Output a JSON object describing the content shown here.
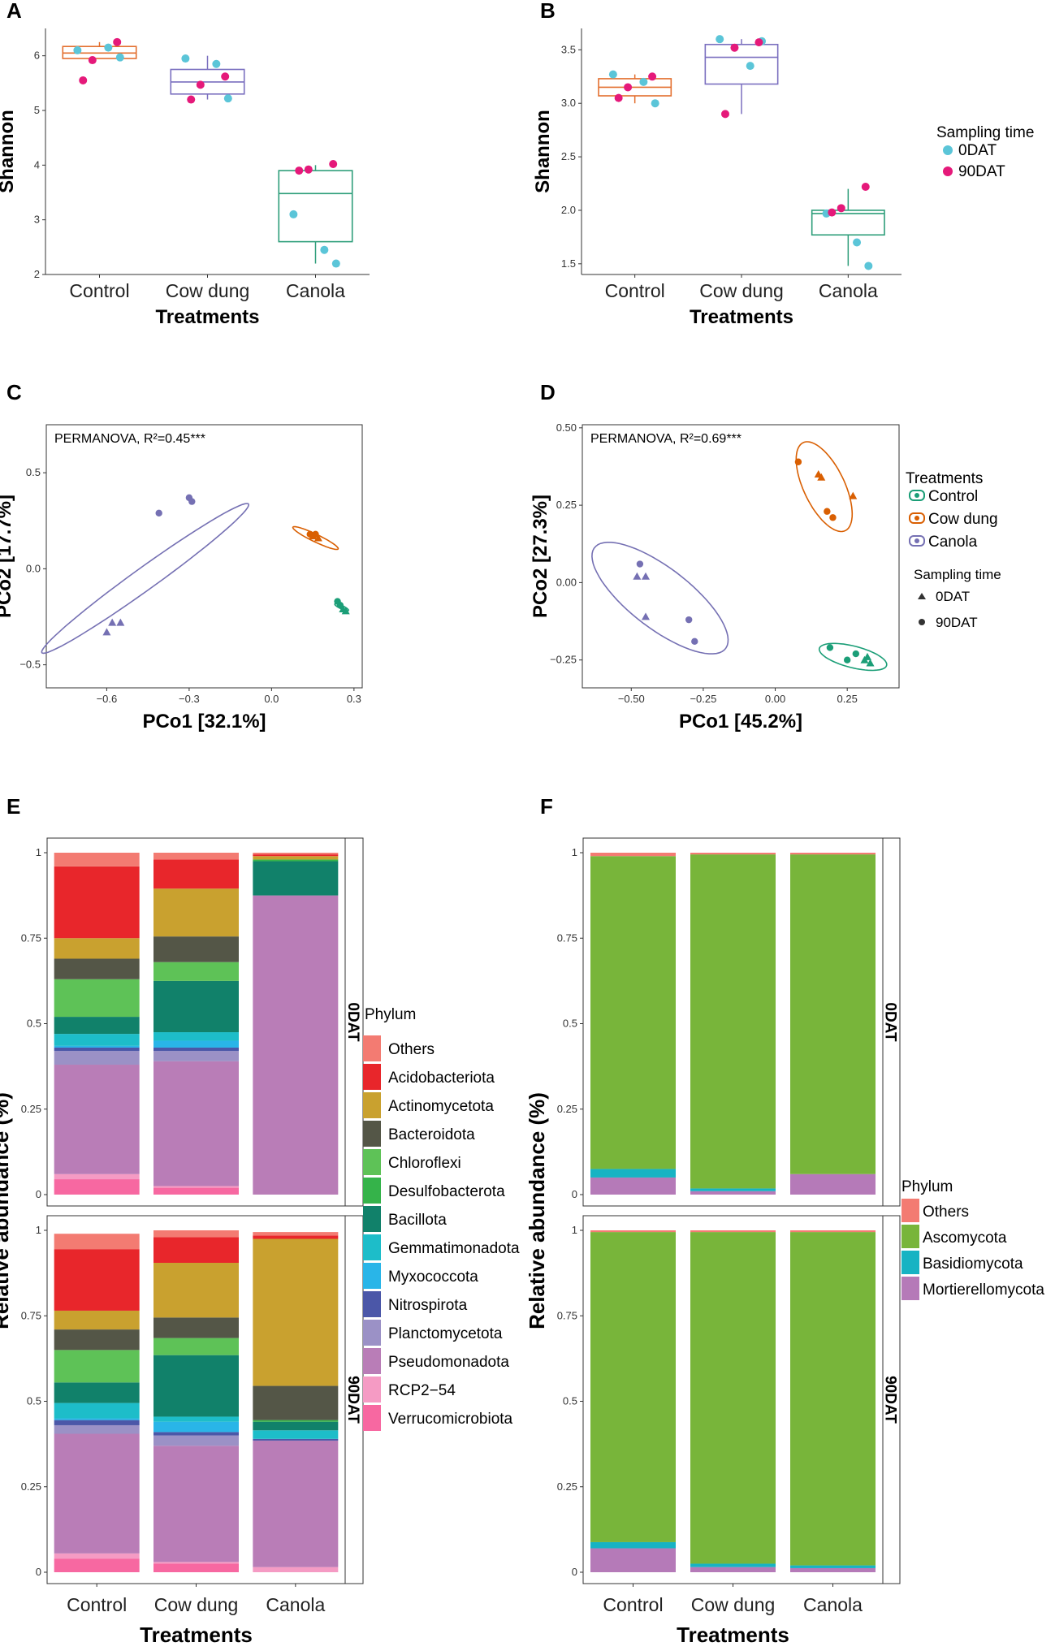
{
  "figure": {
    "panel_letters": [
      "A",
      "B",
      "C",
      "D",
      "E",
      "F"
    ]
  },
  "colors": {
    "Control": "#e36f2f",
    "Cow dung": "#7a6fbf",
    "Canola": "#2e9e7a",
    "pcoa_control": "#1b9e77",
    "pcoa_cowdung": "#d95f02",
    "pcoa_canola": "#7570b3",
    "0DAT": "#5bc5d8",
    "90DAT": "#e5197a"
  },
  "chart_data": [
    {
      "panel": "A",
      "type": "box",
      "title": "",
      "xlabel": "Treatments",
      "ylabel": "Shannon",
      "ylim": [
        2,
        6.5
      ],
      "yticks": [
        "2",
        "3",
        "4",
        "5",
        "6"
      ],
      "categories": [
        "Control",
        "Cow dung",
        "Canola"
      ],
      "boxes": [
        {
          "category": "Control",
          "min": 5.95,
          "q1": 5.95,
          "median": 6.05,
          "q3": 6.17,
          "max": 6.25
        },
        {
          "category": "Cow dung",
          "min": 5.2,
          "q1": 5.3,
          "median": 5.52,
          "q3": 5.75,
          "max": 6.0
        },
        {
          "category": "Canola",
          "min": 2.2,
          "q1": 2.6,
          "median": 3.48,
          "q3": 3.9,
          "max": 4.0
        }
      ],
      "points": [
        {
          "category": "Control",
          "time": "0DAT",
          "values": [
            6.1,
            6.15,
            5.97
          ]
        },
        {
          "category": "Control",
          "time": "90DAT",
          "values": [
            6.25,
            5.92,
            5.55
          ]
        },
        {
          "category": "Cow dung",
          "time": "0DAT",
          "values": [
            5.95,
            5.85,
            5.22
          ]
        },
        {
          "category": "Cow dung",
          "time": "90DAT",
          "values": [
            5.62,
            5.47,
            5.2
          ]
        },
        {
          "category": "Canola",
          "time": "0DAT",
          "values": [
            3.1,
            2.45,
            2.2
          ]
        },
        {
          "category": "Canola",
          "time": "90DAT",
          "values": [
            4.02,
            3.92,
            3.9
          ]
        }
      ]
    },
    {
      "panel": "B",
      "type": "box",
      "title": "",
      "xlabel": "Treatments",
      "ylabel": "Shannon",
      "ylim": [
        1.4,
        3.7
      ],
      "yticks": [
        "1.5",
        "2.0",
        "2.5",
        "3.0",
        "3.5"
      ],
      "categories": [
        "Control",
        "Cow dung",
        "Canola"
      ],
      "boxes": [
        {
          "category": "Control",
          "min": 3.0,
          "q1": 3.07,
          "median": 3.15,
          "q3": 3.23,
          "max": 3.27
        },
        {
          "category": "Cow dung",
          "min": 2.9,
          "q1": 3.18,
          "median": 3.43,
          "q3": 3.55,
          "max": 3.6
        },
        {
          "category": "Canola",
          "min": 1.48,
          "q1": 1.77,
          "median": 1.97,
          "q3": 2.0,
          "max": 2.2
        }
      ],
      "points": [
        {
          "category": "Control",
          "time": "0DAT",
          "values": [
            3.27,
            3.2,
            3.0
          ]
        },
        {
          "category": "Control",
          "time": "90DAT",
          "values": [
            3.25,
            3.15,
            3.05
          ]
        },
        {
          "category": "Cow dung",
          "time": "0DAT",
          "values": [
            3.6,
            3.35,
            3.58
          ]
        },
        {
          "category": "Cow dung",
          "time": "90DAT",
          "values": [
            3.57,
            3.52,
            2.9
          ]
        },
        {
          "category": "Canola",
          "time": "0DAT",
          "values": [
            1.97,
            1.7,
            1.48
          ]
        },
        {
          "category": "Canola",
          "time": "90DAT",
          "values": [
            2.22,
            2.02,
            1.98
          ]
        }
      ],
      "legend": {
        "title": "Sampling time",
        "items": [
          "0DAT",
          "90DAT"
        ]
      }
    },
    {
      "panel": "C",
      "type": "scatter",
      "title": "",
      "annotation": "PERMANOVA, R²=0.45***",
      "xlabel": "PCo1 [32.1%]",
      "ylabel": "PCo2 [17.7%]",
      "xlim": [
        -0.82,
        0.33
      ],
      "ylim": [
        -0.62,
        0.75
      ],
      "xticks": [
        -0.6,
        -0.3,
        0.0,
        0.3
      ],
      "xtick_labels": [
        "−0.6",
        "−0.3",
        "0.0",
        "0.3"
      ],
      "yticks": [
        -0.5,
        0.0,
        0.5
      ],
      "ytick_labels": [
        "−0.5",
        "0.0",
        "0.5"
      ],
      "series": [
        {
          "name": "Canola",
          "color_key": "pcoa_canola",
          "points": [
            {
              "time": "90DAT",
              "x": -0.41,
              "y": 0.29
            },
            {
              "time": "90DAT",
              "x": -0.3,
              "y": 0.37
            },
            {
              "time": "90DAT",
              "x": -0.29,
              "y": 0.35
            },
            {
              "time": "0DAT",
              "x": -0.6,
              "y": -0.33
            },
            {
              "time": "0DAT",
              "x": -0.58,
              "y": -0.28
            },
            {
              "time": "0DAT",
              "x": -0.55,
              "y": -0.28
            }
          ],
          "ellipse": {
            "cx": -0.46,
            "cy": -0.05,
            "rx": 0.54,
            "ry": 0.05,
            "angle_deg": 46
          }
        },
        {
          "name": "Cow dung",
          "color_key": "pcoa_cowdung",
          "points": [
            {
              "time": "90DAT",
              "x": 0.14,
              "y": 0.18
            },
            {
              "time": "90DAT",
              "x": 0.16,
              "y": 0.18
            },
            {
              "time": "0DAT",
              "x": 0.17,
              "y": 0.16
            },
            {
              "time": "0DAT",
              "x": 0.15,
              "y": 0.17
            }
          ],
          "ellipse": {
            "cx": 0.16,
            "cy": 0.16,
            "rx": 0.1,
            "ry": 0.018,
            "angle_deg": -35
          }
        },
        {
          "name": "Control",
          "color_key": "pcoa_control",
          "points": [
            {
              "time": "90DAT",
              "x": 0.24,
              "y": -0.17
            },
            {
              "time": "90DAT",
              "x": 0.25,
              "y": -0.19
            },
            {
              "time": "0DAT",
              "x": 0.26,
              "y": -0.21
            },
            {
              "time": "0DAT",
              "x": 0.27,
              "y": -0.22
            }
          ],
          "ellipse": {
            "cx": 0.255,
            "cy": -0.2,
            "rx": 0.03,
            "ry": 0.008,
            "angle_deg": -35
          }
        }
      ]
    },
    {
      "panel": "D",
      "type": "scatter",
      "title": "",
      "annotation": "PERMANOVA, R²=0.69***",
      "xlabel": "PCo1 [45.2%]",
      "ylabel": "PCo2 [27.3%]",
      "xlim": [
        -0.67,
        0.43
      ],
      "ylim": [
        -0.34,
        0.51
      ],
      "xticks": [
        -0.5,
        -0.25,
        0.0,
        0.25
      ],
      "xtick_labels": [
        "−0.50",
        "−0.25",
        "0.00",
        "0.25"
      ],
      "yticks": [
        -0.25,
        0.0,
        0.25,
        0.5
      ],
      "ytick_labels": [
        "−0.25",
        "0.00",
        "0.25",
        "0.50"
      ],
      "series": [
        {
          "name": "Cow dung",
          "color_key": "pcoa_cowdung",
          "points": [
            {
              "time": "90DAT",
              "x": 0.08,
              "y": 0.39
            },
            {
              "time": "0DAT",
              "x": 0.15,
              "y": 0.35
            },
            {
              "time": "0DAT",
              "x": 0.16,
              "y": 0.34
            },
            {
              "time": "0DAT",
              "x": 0.27,
              "y": 0.28
            },
            {
              "time": "90DAT",
              "x": 0.18,
              "y": 0.23
            },
            {
              "time": "90DAT",
              "x": 0.2,
              "y": 0.21
            }
          ],
          "ellipse": {
            "cx": 0.17,
            "cy": 0.31,
            "rx": 0.16,
            "ry": 0.07,
            "angle_deg": -62
          }
        },
        {
          "name": "Canola",
          "color_key": "pcoa_canola",
          "points": [
            {
              "time": "90DAT",
              "x": -0.47,
              "y": 0.06
            },
            {
              "time": "0DAT",
              "x": -0.48,
              "y": 0.02
            },
            {
              "time": "0DAT",
              "x": -0.45,
              "y": 0.02
            },
            {
              "time": "0DAT",
              "x": -0.45,
              "y": -0.11
            },
            {
              "time": "90DAT",
              "x": -0.3,
              "y": -0.12
            },
            {
              "time": "90DAT",
              "x": -0.28,
              "y": -0.19
            }
          ],
          "ellipse": {
            "cx": -0.4,
            "cy": -0.05,
            "rx": 0.28,
            "ry": 0.1,
            "angle_deg": -35
          }
        },
        {
          "name": "Control",
          "color_key": "pcoa_control",
          "points": [
            {
              "time": "90DAT",
              "x": 0.19,
              "y": -0.21
            },
            {
              "time": "90DAT",
              "x": 0.25,
              "y": -0.25
            },
            {
              "time": "90DAT",
              "x": 0.28,
              "y": -0.23
            },
            {
              "time": "0DAT",
              "x": 0.31,
              "y": -0.25
            },
            {
              "time": "0DAT",
              "x": 0.33,
              "y": -0.26
            },
            {
              "time": "0DAT",
              "x": 0.32,
              "y": -0.24
            }
          ],
          "ellipse": {
            "cx": 0.27,
            "cy": -0.24,
            "rx": 0.12,
            "ry": 0.035,
            "angle_deg": -13
          }
        }
      ],
      "legend": {
        "title": "Treatments",
        "items": [
          "Control",
          "Cow dung",
          "Canola"
        ],
        "shape_title": "Sampling time",
        "shape_items": [
          "0DAT",
          "90DAT"
        ]
      }
    },
    {
      "panel": "E",
      "type": "bar",
      "stacked": true,
      "title": "",
      "xlabel": "Treatments",
      "ylabel": "Relative abundance (%)",
      "ylim": [
        0,
        1
      ],
      "yticks": [
        "0",
        "0.25",
        "0.5",
        "0.75",
        "1"
      ],
      "categories": [
        "Control",
        "Cow dung",
        "Canola"
      ],
      "facets": [
        "0DAT",
        "90DAT"
      ],
      "legend": {
        "title": "Phylum"
      },
      "phyla": [
        {
          "name": "Verrucomicrobiota",
          "color": "#f768a1"
        },
        {
          "name": "RCP2−54",
          "color": "#f59bc4"
        },
        {
          "name": "Pseudomonadota",
          "color": "#b97db7"
        },
        {
          "name": "Planctomycetota",
          "color": "#9b91c6"
        },
        {
          "name": "Nitrospirota",
          "color": "#4b57a8"
        },
        {
          "name": "Myxococcota",
          "color": "#29b5e8"
        },
        {
          "name": "Gemmatimonadota",
          "color": "#1dbdc9"
        },
        {
          "name": "Bacillota",
          "color": "#11816a"
        },
        {
          "name": "Desulfobacterota",
          "color": "#35b34a"
        },
        {
          "name": "Chloroflexi",
          "color": "#5ec257"
        },
        {
          "name": "Bacteroidota",
          "color": "#545647"
        },
        {
          "name": "Actinomycetota",
          "color": "#c9a12f"
        },
        {
          "name": "Acidobacteriota",
          "color": "#e8262b"
        },
        {
          "name": "Others",
          "color": "#f37b72"
        }
      ],
      "legend_order": [
        "Others",
        "Acidobacteriota",
        "Actinomycetota",
        "Bacteroidota",
        "Chloroflexi",
        "Desulfobacterota",
        "Bacillota",
        "Gemmatimonadota",
        "Myxococcota",
        "Nitrospirota",
        "Planctomycetota",
        "Pseudomonadota",
        "RCP2−54",
        "Verrucomicrobiota"
      ],
      "values": {
        "0DAT": {
          "Control": [
            0.045,
            0.015,
            0.32,
            0.04,
            0.01,
            0.005,
            0.035,
            0.05,
            0.0,
            0.11,
            0.06,
            0.06,
            0.21,
            0.04
          ],
          "Cow dung": [
            0.02,
            0.005,
            0.365,
            0.03,
            0.01,
            0.02,
            0.025,
            0.15,
            0.0,
            0.055,
            0.075,
            0.14,
            0.085,
            0.02
          ],
          "Canola": [
            0.0,
            0.0,
            0.875,
            0.0,
            0.0,
            0.0,
            0.0,
            0.1,
            0.005,
            0.0,
            0.0,
            0.01,
            0.005,
            0.005
          ]
        },
        "90DAT": {
          "Control": [
            0.04,
            0.015,
            0.35,
            0.025,
            0.015,
            0.005,
            0.045,
            0.06,
            0.0,
            0.095,
            0.06,
            0.055,
            0.18,
            0.045
          ],
          "Cow dung": [
            0.025,
            0.005,
            0.34,
            0.03,
            0.01,
            0.03,
            0.015,
            0.18,
            0.0,
            0.05,
            0.06,
            0.16,
            0.075,
            0.02
          ],
          "Canola": [
            0.0,
            0.015,
            0.37,
            0.0,
            0.005,
            0.0,
            0.025,
            0.025,
            0.005,
            0.0,
            0.1,
            0.43,
            0.01,
            0.01
          ]
        }
      }
    },
    {
      "panel": "F",
      "type": "bar",
      "stacked": true,
      "title": "",
      "xlabel": "Treatments",
      "ylabel": "Relative abundance (%)",
      "ylim": [
        0,
        1
      ],
      "yticks": [
        "0",
        "0.25",
        "0.5",
        "0.75",
        "1"
      ],
      "categories": [
        "Control",
        "Cow dung",
        "Canola"
      ],
      "facets": [
        "0DAT",
        "90DAT"
      ],
      "legend": {
        "title": "Phylum"
      },
      "phyla": [
        {
          "name": "Mortierellomycota",
          "color": "#b57ab8"
        },
        {
          "name": "Basidiomycota",
          "color": "#17b3c3"
        },
        {
          "name": "Ascomycota",
          "color": "#78b53a"
        },
        {
          "name": "Others",
          "color": "#f37b72"
        }
      ],
      "legend_order": [
        "Others",
        "Ascomycota",
        "Basidiomycota",
        "Mortierellomycota"
      ],
      "values": {
        "0DAT": {
          "Control": [
            0.05,
            0.025,
            0.915,
            0.01
          ],
          "Cow dung": [
            0.01,
            0.008,
            0.977,
            0.005
          ],
          "Canola": [
            0.06,
            0.0,
            0.935,
            0.005
          ]
        },
        "90DAT": {
          "Control": [
            0.07,
            0.018,
            0.907,
            0.005
          ],
          "Cow dung": [
            0.015,
            0.01,
            0.97,
            0.005
          ],
          "Canola": [
            0.012,
            0.008,
            0.975,
            0.005
          ]
        }
      }
    }
  ]
}
